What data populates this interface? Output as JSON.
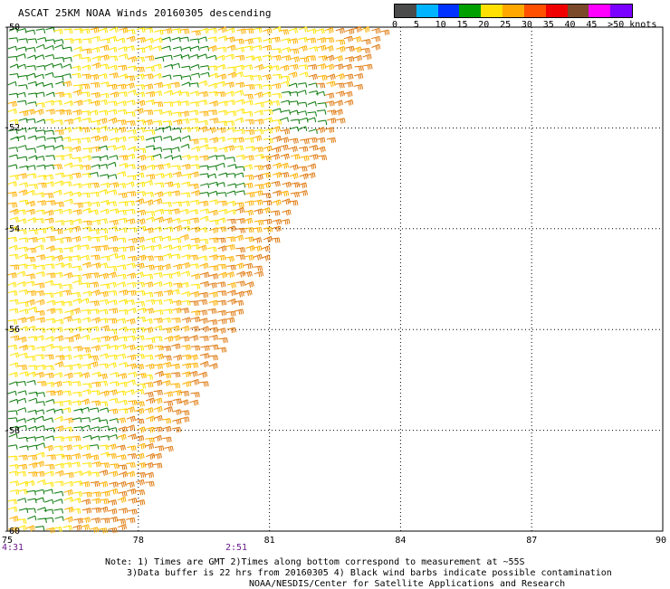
{
  "title": "ASCAT 25KM NOAA Winds 20160305 descending",
  "scale": {
    "labels": [
      "0",
      "5",
      "10",
      "15",
      "20",
      "25",
      "30",
      "35",
      "40",
      "45",
      ">50 knots"
    ],
    "colors": [
      "#4b4b4b",
      "#00b4ff",
      "#0032ff",
      "#00a000",
      "#ffe000",
      "#ffa800",
      "#ff5000",
      "#f00000",
      "#7a4a2a",
      "#ff00ff",
      "#7a00ff"
    ]
  },
  "axes": {
    "lat_labels": [
      "-50",
      "-52",
      "-54",
      "-56",
      "-58",
      "-60"
    ],
    "lon_labels": [
      "75",
      "78",
      "81",
      "84",
      "87",
      "90"
    ]
  },
  "times": [
    "4:31",
    "2:51"
  ],
  "notes": {
    "line1": "Note: 1) Times are GMT 2)Times along bottom correspond to measurement at ~55S",
    "line2": "3)Data buffer is 22 hrs from 20160305 4) Black wind barbs indicate possible contamination",
    "line3": "NOAA/NESDIS/Center for Satellite Applications and Research"
  },
  "legend_colors": {
    "green": "#0a7a0a",
    "yellow": "#ffe400",
    "gold": "#ffb000",
    "orange": "#e07a10"
  }
}
